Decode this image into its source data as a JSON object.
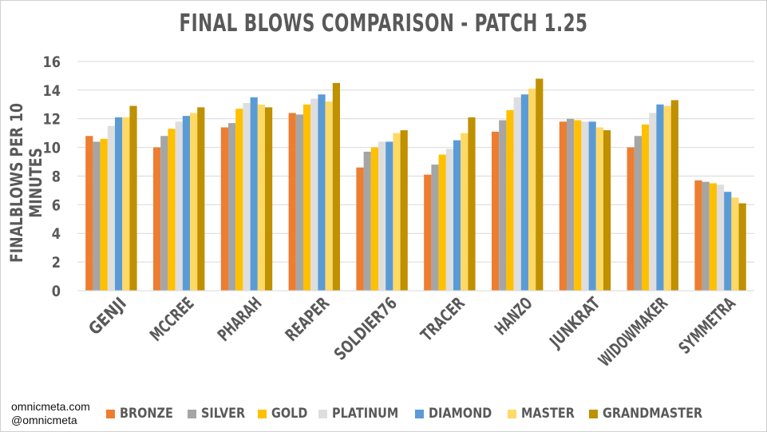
{
  "watermark": {
    "line1": "omnicmeta.com",
    "line2": "@omnicmeta"
  },
  "chart_data": {
    "type": "bar",
    "title": "FINAL BLOWS COMPARISON - PATCH 1.25",
    "ylabel": "FINALBLOWS PER 10 MINUTES",
    "xlabel": "",
    "ylim": [
      0,
      16
    ],
    "yticks": [
      0,
      2,
      4,
      6,
      8,
      10,
      12,
      14,
      16
    ],
    "grid": true,
    "legend_position": "bottom",
    "categories": [
      "GENJI",
      "MCCREE",
      "PHARAH",
      "REAPER",
      "SOLDIER76",
      "TRACER",
      "HANZO",
      "JUNKRAT",
      "WIDOWMAKER",
      "SYMMETRA"
    ],
    "series": [
      {
        "name": "BRONZE",
        "color": "#ED7D31",
        "values": [
          10.8,
          10.0,
          11.4,
          12.4,
          8.6,
          8.1,
          11.1,
          11.8,
          10.0,
          7.7
        ]
      },
      {
        "name": "SILVER",
        "color": "#A5A5A5",
        "values": [
          10.4,
          10.8,
          11.7,
          12.3,
          9.7,
          8.8,
          11.9,
          12.0,
          10.8,
          7.6
        ]
      },
      {
        "name": "GOLD",
        "color": "#FFC000",
        "values": [
          10.6,
          11.3,
          12.7,
          13.0,
          10.0,
          9.5,
          12.6,
          11.9,
          11.6,
          7.5
        ]
      },
      {
        "name": "PLATINUM",
        "color": "#DEDEDE",
        "values": [
          11.5,
          11.8,
          13.1,
          13.4,
          10.4,
          9.9,
          13.5,
          11.8,
          12.4,
          7.4
        ]
      },
      {
        "name": "DIAMOND",
        "color": "#5B9BD5",
        "values": [
          12.1,
          12.2,
          13.5,
          13.7,
          10.4,
          10.5,
          13.7,
          11.8,
          13.0,
          6.9
        ]
      },
      {
        "name": "MASTER",
        "color": "#FFD966",
        "values": [
          12.1,
          12.4,
          13.0,
          13.2,
          11.0,
          11.0,
          14.1,
          11.4,
          12.9,
          6.5
        ]
      },
      {
        "name": "GRANDMASTER",
        "color": "#BF9000",
        "values": [
          12.9,
          12.8,
          12.8,
          14.5,
          11.2,
          12.1,
          14.8,
          11.2,
          13.3,
          6.1
        ]
      }
    ]
  }
}
